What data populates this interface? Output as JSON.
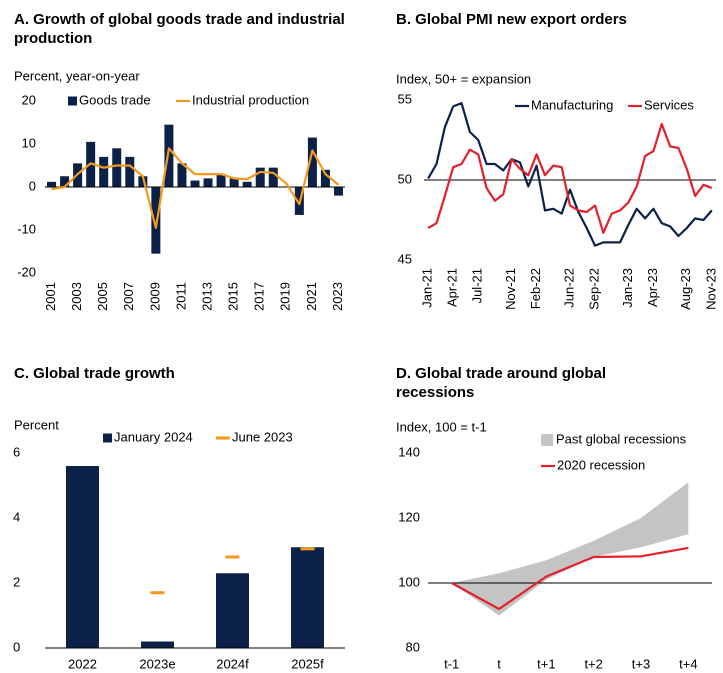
{
  "chart_data": [
    {
      "type": "combo",
      "title": "A. Growth of global goods trade and industrial production",
      "y_label": "Percent, year-on-year",
      "categories": [
        "2001",
        null,
        "2003",
        null,
        "2005",
        null,
        "2007",
        null,
        "2009",
        null,
        "2011",
        null,
        "2013",
        null,
        "2015",
        null,
        "2017",
        null,
        "2019",
        null,
        "2021",
        null,
        "2023"
      ],
      "series": [
        {
          "name": "Goods trade",
          "type": "bar",
          "color": "#0b2148",
          "values": [
            1.2,
            2.5,
            5.5,
            10.5,
            7,
            9,
            7,
            2.5,
            -15.5,
            14.5,
            5.5,
            1.5,
            2,
            3,
            2,
            1.2,
            4.5,
            4.5,
            0,
            -6.5,
            11.5,
            4,
            -2
          ]
        },
        {
          "name": "Industrial production",
          "type": "line",
          "color": "#f39a1e",
          "values": [
            -0.5,
            0,
            3,
            5.5,
            4.5,
            5,
            5,
            2.5,
            -9.5,
            9,
            5.5,
            3,
            3,
            3,
            2,
            1.8,
            3.5,
            3.3,
            0.8,
            -4,
            8.5,
            3,
            0.5
          ]
        }
      ],
      "ylim": [
        -20,
        20
      ],
      "yticks": [
        -20,
        -10,
        0,
        10,
        20
      ]
    },
    {
      "type": "line",
      "title": "B. Global PMI new export orders",
      "y_label": "Index, 50+ = expansion",
      "categories": [
        "Jan-21",
        null,
        null,
        "Apr-21",
        null,
        null,
        "Jul-21",
        null,
        null,
        null,
        "Nov-21",
        null,
        null,
        "Feb-22",
        null,
        null,
        null,
        "Jun-22",
        null,
        null,
        "Sep-22",
        null,
        null,
        null,
        "Jan-23",
        null,
        null,
        "Apr-23",
        null,
        null,
        null,
        "Aug-23",
        null,
        null,
        "Nov-23"
      ],
      "series": [
        {
          "name": "Manufacturing",
          "type": "line",
          "color": "#0b2148",
          "values": [
            50.1,
            51,
            53.3,
            54.6,
            54.8,
            53,
            52.5,
            51,
            51,
            50.6,
            51.3,
            51.1,
            49.6,
            50.9,
            48.1,
            48.2,
            47.9,
            49.4,
            48,
            47,
            45.9,
            46.1,
            46.1,
            46.1,
            47.2,
            48.2,
            47.6,
            48.2,
            47.3,
            47.1,
            46.5,
            47,
            47.6,
            47.5,
            48.1
          ]
        },
        {
          "name": "Services",
          "type": "line",
          "color": "#e3202b",
          "values": [
            47,
            47.3,
            49,
            50.8,
            51,
            51.9,
            51.6,
            49.5,
            48.7,
            49.1,
            51.3,
            50.7,
            50.3,
            51.6,
            50.3,
            50.9,
            50.8,
            48.4,
            48.1,
            48,
            48.4,
            46.7,
            47.9,
            48.1,
            48.6,
            49.6,
            51.5,
            51.8,
            53.5,
            52.1,
            52,
            50.7,
            49,
            49.7,
            49.5
          ]
        }
      ],
      "ylim": [
        45,
        55
      ],
      "yticks": [
        45,
        50,
        55
      ],
      "hline": 50
    },
    {
      "type": "combo",
      "title": "C. Global trade growth",
      "y_label": "Percent",
      "categories": [
        "2022",
        "2023e",
        "2024f",
        "2025f"
      ],
      "series": [
        {
          "name": "January 2024",
          "type": "bar",
          "color": "#0b2148",
          "values": [
            5.6,
            0.2,
            2.3,
            3.1
          ]
        },
        {
          "name": "June 2023",
          "type": "marker",
          "color": "#f39a1e",
          "values": [
            null,
            1.7,
            2.8,
            3.05
          ]
        }
      ],
      "ylim": [
        0,
        6
      ],
      "yticks": [
        0,
        2,
        4,
        6
      ]
    },
    {
      "type": "combo",
      "title": "D. Global trade around global recessions",
      "y_label": "Index, 100 = t-1",
      "categories": [
        "t-1",
        "t",
        "t+1",
        "t+2",
        "t+3",
        "t+4"
      ],
      "series": [
        {
          "name": "Past global recessions",
          "type": "band",
          "color": "#c4c4c4",
          "low": [
            100,
            90,
            101,
            108,
            111,
            115
          ],
          "high": [
            100,
            103,
            107,
            113,
            120,
            131
          ]
        },
        {
          "name": "2020 recession",
          "type": "line",
          "color": "#e3202b",
          "values": [
            100,
            92,
            102,
            108,
            108.2,
            110.8
          ]
        }
      ],
      "ylim": [
        80,
        140
      ],
      "yticks": [
        80,
        100,
        120,
        140
      ],
      "hline": 100
    }
  ]
}
